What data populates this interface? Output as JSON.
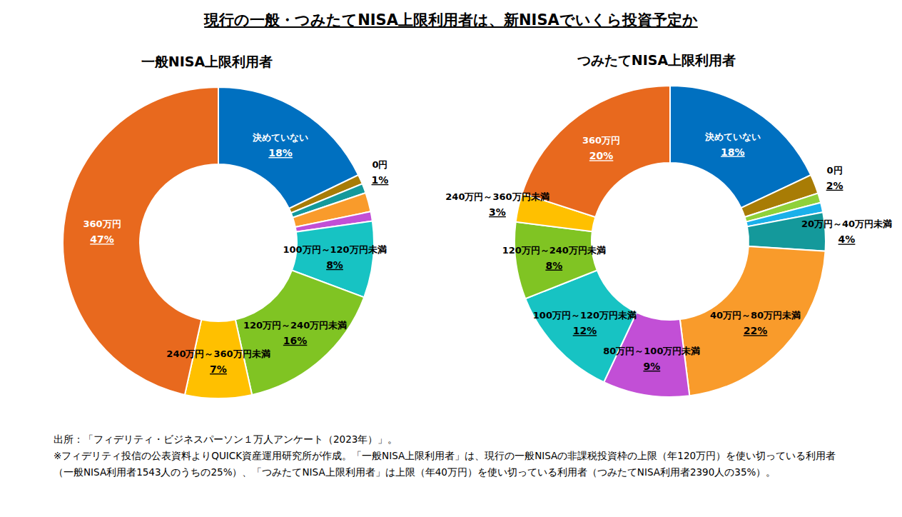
{
  "title": "現行の一般・つみたてNISA上限利用者は、新NISAでいくら投資予定か",
  "chart_data": [
    {
      "type": "pie",
      "title": "一般NISA上限利用者",
      "categories": [
        "決めていない",
        "0円",
        null,
        null,
        null,
        "100万円～120万円未満",
        "120万円～240万円未満",
        "240万円～360万円未満",
        "360万円"
      ],
      "values": [
        18,
        1,
        1,
        2,
        1,
        8,
        16,
        7,
        47
      ],
      "value_labels": [
        "18%",
        "1%",
        null,
        null,
        null,
        "8%",
        "16%",
        "7%",
        "47%"
      ],
      "colors": [
        "#0070c0",
        "#a87c05",
        "#14999b",
        "#f99b2b",
        "#c24fd6",
        "#17c3c3",
        "#80c423",
        "#ffc000",
        "#e8691e"
      ],
      "data_labels": true
    },
    {
      "type": "pie",
      "title": "つみたてNISA上限利用者",
      "categories": [
        "決めていない",
        "0円",
        null,
        null,
        "20万円～40万円未満",
        "40万円～80万円未満",
        "80万円～100万円未満",
        "100万円～120万円未満",
        "120万円～240万円未満",
        "240万円～360万円未満",
        "360万円"
      ],
      "values": [
        18,
        2,
        1,
        1,
        4,
        22,
        9,
        12,
        8,
        3,
        20
      ],
      "value_labels": [
        "18%",
        "2%",
        null,
        null,
        "4%",
        "22%",
        "9%",
        "12%",
        "8%",
        "3%",
        "20%"
      ],
      "colors": [
        "#0070c0",
        "#a87c05",
        "#8fd13a",
        "#1ab0ea",
        "#14999b",
        "#f99b2b",
        "#c24fd6",
        "#17c3c3",
        "#80c423",
        "#ffc000",
        "#e8691e"
      ],
      "data_labels": true
    }
  ],
  "notes": [
    "出所：「フィデリティ・ビジネスパーソン１万人アンケート（2023年）」。",
    "※フィデリティ投信の公表資料よりQUICK資産運用研究所が作成。「一般NISA上限利用者」は、現行の一般NISAの非課税投資枠の上限（年120万円）を使い切っている利用者（一般NISA利用者1543人のうちの25%）、「つみたてNISA上限利用者」は上限（年40万円）を使い切っている利用者（つみたてNISA利用者2390人の35%）。"
  ]
}
